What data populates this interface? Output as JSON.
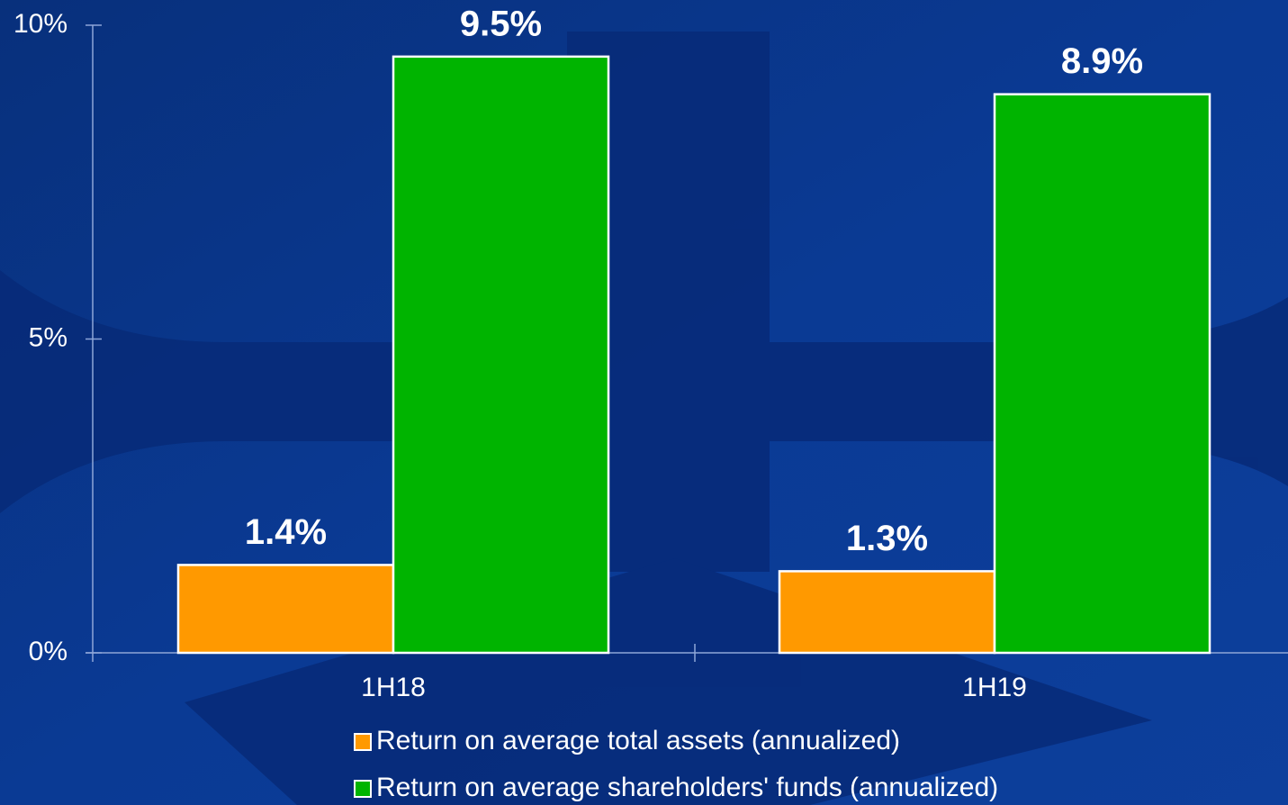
{
  "chart_data": {
    "type": "bar",
    "categories": [
      "1H18",
      "1H19"
    ],
    "series": [
      {
        "name": "Return on average total assets (annualized)",
        "color": "#ff9900",
        "values": [
          1.4,
          1.3
        ],
        "value_labels": [
          "1.4%",
          "1.3%"
        ]
      },
      {
        "name": "Return on average shareholders' funds (annualized)",
        "color": "#00b400",
        "values": [
          9.5,
          8.9
        ],
        "value_labels": [
          "9.5%",
          "8.9%"
        ]
      }
    ],
    "ylim": [
      0,
      10
    ],
    "yticks": [
      {
        "value": 0,
        "label": "0%"
      },
      {
        "value": 5,
        "label": "5%"
      },
      {
        "value": 10,
        "label": "10%"
      }
    ],
    "grid": false,
    "legend": "bottom"
  }
}
